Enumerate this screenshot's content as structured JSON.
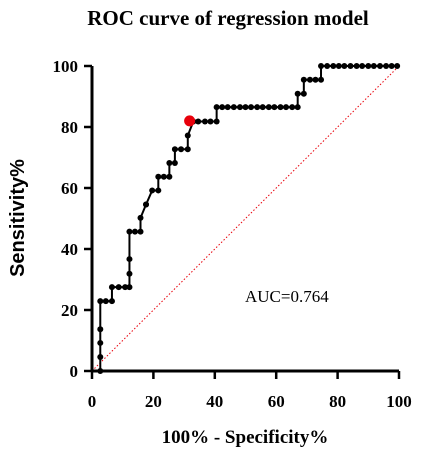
{
  "chart_data": {
    "type": "line",
    "title": "ROC curve of regression model",
    "xlabel": "100% - Specificity%",
    "ylabel": "Sensitivity%",
    "xlim": [
      0,
      100
    ],
    "ylim": [
      0,
      100
    ],
    "xticks": [
      0,
      20,
      40,
      60,
      80,
      100
    ],
    "yticks": [
      0,
      20,
      40,
      60,
      80,
      100
    ],
    "grid": false,
    "annotation": "AUC=0.764",
    "series": [
      {
        "color": "#000000",
        "marker": "circle",
        "x": [
          2.7,
          2.7,
          2.7,
          2.7,
          2.7,
          4.5,
          6.5,
          6.5,
          8.7,
          10.8,
          12.2,
          12.2,
          12.2,
          12.2,
          14.0,
          15.8,
          15.8,
          17.6,
          17.6,
          19.6,
          21.6,
          21.6,
          23.4,
          25.2,
          25.2,
          27.0,
          27.0,
          29.0,
          31.2,
          31.2,
          33.0,
          34.6,
          36.8,
          38.6,
          40.6,
          40.6,
          42.4,
          44.2,
          46.2,
          48.2,
          50.0,
          51.8,
          53.8,
          55.6,
          57.6,
          59.4,
          61.4,
          63.2,
          65.2,
          67.0,
          67.0,
          69.0,
          69.0,
          71.0,
          72.8,
          74.6,
          74.6,
          76.6,
          78.6,
          80.4,
          82.2,
          84.2,
          86.2,
          88.0,
          90.0,
          91.8,
          93.8,
          95.8,
          97.6,
          99.4
        ],
        "y": [
          0,
          4.6,
          9.2,
          13.7,
          22.9,
          22.9,
          22.9,
          27.5,
          27.5,
          27.5,
          27.5,
          31.9,
          36.7,
          45.7,
          45.7,
          45.7,
          50.2,
          54.6,
          54.6,
          59.2,
          59.2,
          63.7,
          63.7,
          63.7,
          68.2,
          68.2,
          72.7,
          72.7,
          72.7,
          77.2,
          81.8,
          81.8,
          81.8,
          81.8,
          81.8,
          86.5,
          86.5,
          86.5,
          86.5,
          86.5,
          86.5,
          86.5,
          86.5,
          86.5,
          86.5,
          86.5,
          86.5,
          86.5,
          86.5,
          86.5,
          90.9,
          90.9,
          95.5,
          95.5,
          95.5,
          95.5,
          100,
          100,
          100,
          100,
          100,
          100,
          100,
          100,
          100,
          100,
          100,
          100,
          100,
          100
        ]
      }
    ],
    "highlight_point": {
      "x": 31.8,
      "y": 82.0,
      "color": "#e8000b"
    },
    "reference_line": {
      "from": [
        0,
        0
      ],
      "to": [
        100,
        100
      ],
      "color": "#e8000b",
      "style": "dotted"
    }
  }
}
